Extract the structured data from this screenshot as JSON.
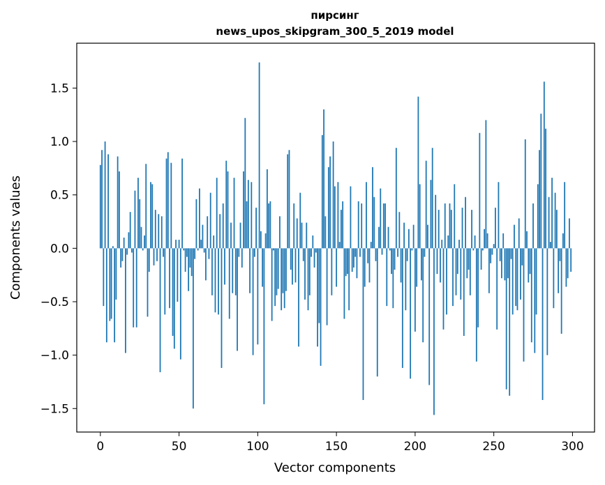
{
  "chart_data": {
    "type": "bar",
    "title": "пирсинг",
    "subtitle": "news_upos_skipgram_300_5_2019 model",
    "xlabel": "Vector components",
    "ylabel": "Components values",
    "xlim": [
      -15,
      314
    ],
    "ylim": [
      -1.72,
      1.92
    ],
    "xticks": [
      0,
      50,
      100,
      150,
      200,
      250,
      300
    ],
    "yticks": [
      -1.5,
      -1.0,
      -0.5,
      0.0,
      0.5,
      1.0,
      1.5
    ],
    "ytick_labels": [
      "−1.5",
      "−1.0",
      "−0.5",
      "0.0",
      "0.5",
      "1.0",
      "1.5"
    ],
    "grid": false,
    "color": "#1f77b4",
    "values": [
      0.78,
      0.92,
      -0.54,
      1.0,
      -0.88,
      0.88,
      -0.68,
      -0.66,
      0.02,
      -0.88,
      -0.48,
      0.86,
      0.72,
      -0.18,
      -0.12,
      0.1,
      -0.98,
      -0.06,
      0.15,
      0.34,
      -0.04,
      -0.74,
      0.54,
      -0.74,
      0.66,
      0.46,
      0.2,
      -0.02,
      0.12,
      0.79,
      -0.64,
      -0.22,
      0.62,
      0.6,
      -0.16,
      0.36,
      -0.12,
      0.32,
      -1.16,
      0.3,
      -0.08,
      -0.62,
      0.84,
      0.9,
      -0.56,
      0.8,
      -0.82,
      -0.94,
      0.08,
      -0.5,
      0.08,
      -1.04,
      0.84,
      -0.02,
      -0.22,
      -0.08,
      -0.4,
      -0.18,
      -0.26,
      -1.5,
      -0.1,
      0.46,
      -0.02,
      0.56,
      0.08,
      0.22,
      -0.04,
      -0.3,
      0.3,
      -0.1,
      0.52,
      -0.44,
      0.12,
      -0.6,
      0.66,
      -0.62,
      0.32,
      -1.12,
      0.42,
      -0.34,
      0.82,
      0.72,
      -0.66,
      0.24,
      -0.42,
      0.66,
      -0.44,
      -0.96,
      -0.08,
      0.24,
      -0.18,
      0.72,
      1.22,
      0.44,
      0.64,
      -0.42,
      0.62,
      -1.0,
      -0.08,
      0.38,
      -0.9,
      1.74,
      0.16,
      -0.36,
      -1.46,
      0.14,
      0.74,
      0.42,
      0.44,
      -0.68,
      -0.02,
      -0.54,
      -0.44,
      -0.38,
      0.3,
      -0.58,
      -0.42,
      -0.56,
      -0.4,
      0.88,
      0.92,
      -0.2,
      -0.34,
      0.42,
      -0.32,
      0.28,
      -0.92,
      0.52,
      0.24,
      -0.12,
      -0.48,
      0.24,
      -0.58,
      -0.44,
      -0.08,
      0.12,
      -0.18,
      -0.04,
      -0.92,
      -0.7,
      -1.1,
      1.06,
      1.3,
      0.3,
      -0.72,
      0.76,
      0.86,
      -0.44,
      1.0,
      0.58,
      -0.36,
      0.62,
      0.06,
      0.36,
      0.44,
      -0.66,
      -0.26,
      -0.24,
      -0.58,
      0.58,
      -0.22,
      -0.18,
      -0.08,
      -0.28,
      0.44,
      -0.08,
      0.42,
      -1.42,
      -0.36,
      0.62,
      -0.14,
      -0.32,
      0.06,
      0.76,
      0.48,
      -0.12,
      -1.2,
      0.2,
      0.56,
      -0.06,
      0.42,
      0.42,
      -0.54,
      0.2,
      -0.02,
      -0.24,
      -0.56,
      -0.2,
      0.94,
      -0.08,
      0.34,
      -0.32,
      -1.12,
      0.24,
      -0.58,
      -0.12,
      0.18,
      -1.22,
      -0.02,
      0.22,
      -0.78,
      -0.36,
      1.42,
      0.6,
      -0.3,
      -0.88,
      -0.08,
      0.82,
      0.22,
      -1.28,
      0.64,
      0.94,
      -1.56,
      0.5,
      -0.24,
      0.36,
      -0.32,
      0.08,
      -0.76,
      0.42,
      -0.62,
      0.12,
      0.42,
      0.36,
      -0.54,
      0.6,
      -0.44,
      -0.24,
      0.08,
      -0.48,
      0.38,
      -0.82,
      0.48,
      -0.28,
      -0.2,
      -0.44,
      0.36,
      -0.02,
      0.12,
      -1.06,
      -0.74,
      1.08,
      -0.2,
      -0.02,
      0.18,
      1.2,
      0.14,
      -0.42,
      -0.14,
      -0.06,
      0.04,
      0.38,
      -0.76,
      0.62,
      -0.12,
      -0.28,
      0.14,
      -0.3,
      -1.32,
      -0.28,
      -1.38,
      -0.1,
      -0.62,
      0.22,
      -0.54,
      -0.58,
      0.28,
      -0.48,
      -0.16,
      -1.06,
      1.02,
      0.16,
      -0.32,
      -0.24,
      -0.88,
      0.42,
      -0.98,
      -0.62,
      0.6,
      0.92,
      1.26,
      -1.42,
      1.56,
      1.12,
      -1.0,
      0.48,
      0.06,
      0.66,
      -0.56,
      0.52,
      0.36,
      -0.42,
      -0.12,
      -0.8,
      0.14,
      0.62,
      -0.36,
      -0.28,
      0.28,
      -0.22
    ]
  }
}
